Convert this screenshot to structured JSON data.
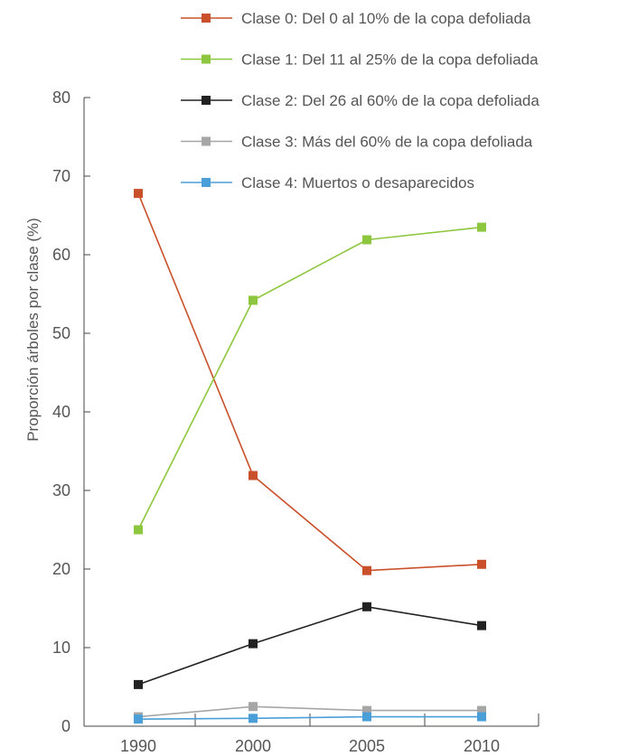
{
  "chart_data": {
    "type": "line",
    "title": "",
    "xlabel": "",
    "ylabel": "Proporción árboles por clase  (%)",
    "categories": [
      "1990",
      "2000",
      "2005",
      "2010"
    ],
    "yticks": [
      "0",
      "10",
      "20",
      "30",
      "40",
      "50",
      "60",
      "70",
      "80"
    ],
    "ylim": [
      0,
      80
    ],
    "grid": false,
    "legend_position": "top-right",
    "series": [
      {
        "name": "Clase 0: Del 0 al 10% de la copa defoliada",
        "color": "#c9502a",
        "values": [
          67.8,
          31.9,
          19.8,
          20.6
        ]
      },
      {
        "name": "Clase 1: Del 11 al 25% de la copa defoliada",
        "color": "#8dc63f",
        "values": [
          25.0,
          54.2,
          61.9,
          63.5
        ]
      },
      {
        "name": "Clase 2: Del 26 al 60% de la copa defoliada",
        "color": "#222222",
        "values": [
          5.3,
          10.5,
          15.2,
          12.8
        ]
      },
      {
        "name": "Clase 3: Más del 60% de la copa defoliada",
        "color": "#a6a6a6",
        "values": [
          1.2,
          2.5,
          2.0,
          2.0
        ]
      },
      {
        "name": "Clase 4: Muertos o desaparecidos",
        "color": "#4a9fd8",
        "values": [
          0.9,
          1.0,
          1.2,
          1.2
        ]
      }
    ]
  }
}
